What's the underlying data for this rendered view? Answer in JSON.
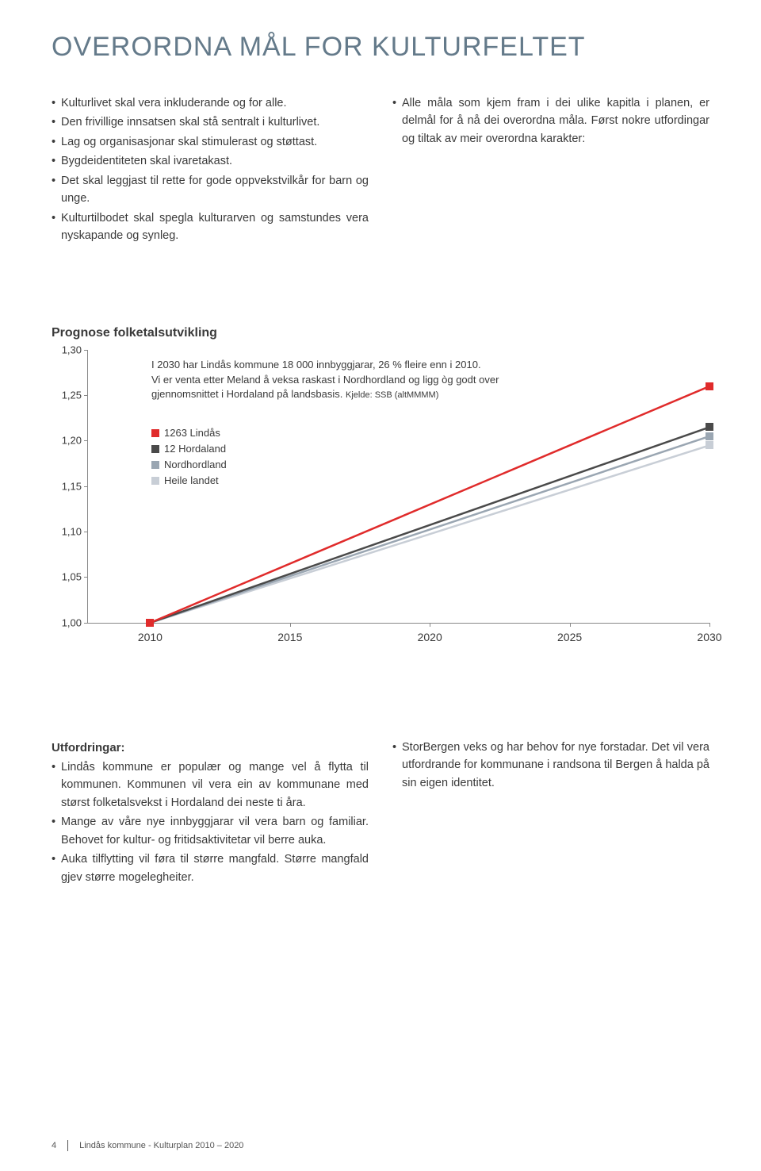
{
  "title": "OVERORDNA MÅL FOR KULTURFELTET",
  "left_bullets": [
    "Kulturlivet skal vera inkluderande og for alle.",
    "Den frivillige innsatsen skal stå sentralt i kulturlivet.",
    "Lag og organisasjonar skal stimulerast og støttast.",
    "Bygdeidentiteten skal ivaretakast.",
    "Det skal leggjast til rette for gode oppvekstvilkår for barn og unge.",
    "Kulturtilbodet skal spegla kulturarven og samstundes vera nyskapande og synleg."
  ],
  "right_bullets": [
    "Alle måla som kjem fram i dei ulike kapitla i planen, er delmål for å nå dei overordna måla. Først nokre utfordingar og tiltak av meir overordna karakter:"
  ],
  "chart": {
    "title": "Prognose folketalsutvikling",
    "type": "line",
    "note_line1": "I 2030 har Lindås kommune 18 000 innbyggjarar, 26 % fleire enn i 2010.",
    "note_line2": "Vi er venta etter Meland å veksa raskast i Nordhordland og ligg òg godt over gjennomsnittet i Hordaland på landsbasis.",
    "note_source": "Kjelde: SSB (altMMMM)",
    "x_labels": [
      "2010",
      "2015",
      "2020",
      "2025",
      "2030"
    ],
    "y_labels": [
      "1,00",
      "1,05",
      "1,10",
      "1,15",
      "1,20",
      "1,25",
      "1,30"
    ],
    "ylim": [
      1.0,
      1.3
    ],
    "series": [
      {
        "label": "1263 Lindås",
        "color": "#e02b2b",
        "y2010": 1.0,
        "y2030": 1.26
      },
      {
        "label": "12 Hordaland",
        "color": "#4a4a4a",
        "y2010": 1.0,
        "y2030": 1.215
      },
      {
        "label": "Nordhordland",
        "color": "#9aa6b2",
        "y2010": 1.0,
        "y2030": 1.205
      },
      {
        "label": "Heile landet",
        "color": "#c8ced6",
        "y2010": 1.0,
        "y2030": 1.195
      }
    ],
    "marker_size": 10,
    "line_width": 2.5,
    "start_marker_color": "#e02b2b",
    "background": "#ffffff"
  },
  "utfordringar": {
    "heading": "Utfordringar:",
    "left": [
      "Lindås kommune er populær og mange vel å flytta til kommunen. Kommunen vil vera ein av kommunane med størst folketalsvekst i Hordaland dei neste ti åra.",
      "Mange av våre nye innbyggjarar vil vera barn og familiar. Behovet for kultur- og fritidsaktivitetar vil berre auka.",
      "Auka tilflytting vil føra til større mangfald. Større mangfald gjev større mogelegheiter."
    ],
    "right": [
      "StorBergen veks og har behov for nye forstadar. Det vil vera utfordrande for kommunane i randsona til Bergen å halda på sin eigen identitet."
    ]
  },
  "footer": {
    "page": "4",
    "text": "Lindås kommune - Kulturplan 2010 – 2020"
  }
}
